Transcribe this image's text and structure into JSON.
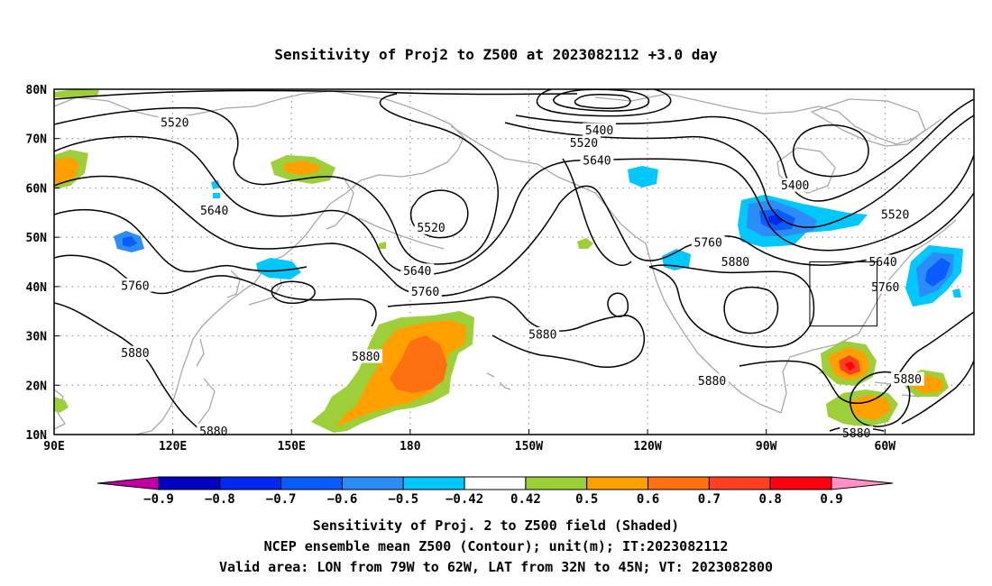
{
  "title": "Sensitivity of Proj2 to Z500 at 2023082112 +3.0 day",
  "map": {
    "lon_ticks": [
      "90E",
      "120E",
      "150E",
      "180",
      "150W",
      "120W",
      "90W",
      "60W"
    ],
    "lat_ticks": [
      "80N",
      "70N",
      "60N",
      "50N",
      "40N",
      "30N",
      "20N",
      "10N"
    ],
    "lon_range": [
      90,
      322.5
    ],
    "lat_range": [
      10,
      80
    ],
    "grid": true,
    "valid_area_box": {
      "lon": [
        281,
        298
      ],
      "lat": [
        32,
        45
      ]
    },
    "contour_color": "#000000",
    "coastline_color": "#a8a8a8"
  },
  "contours": {
    "unit": "m",
    "labels": [
      {
        "text": "5520",
        "lon": 120.5,
        "lat": 73.2
      },
      {
        "text": "5640",
        "lon": 130.5,
        "lat": 55.4
      },
      {
        "text": "5760",
        "lon": 110.5,
        "lat": 40.2
      },
      {
        "text": "5880",
        "lon": 110.5,
        "lat": 26.5
      },
      {
        "text": "5880",
        "lon": 130.3,
        "lat": 10.6
      },
      {
        "text": "5520",
        "lon": 185.3,
        "lat": 51.9
      },
      {
        "text": "5640",
        "lon": 181.8,
        "lat": 43.2
      },
      {
        "text": "5760",
        "lon": 183.8,
        "lat": 39.0
      },
      {
        "text": "5880",
        "lon": 168.8,
        "lat": 25.8
      },
      {
        "text": "5400",
        "lon": 227.8,
        "lat": 71.7
      },
      {
        "text": "5520",
        "lon": 223.9,
        "lat": 69.1
      },
      {
        "text": "5640",
        "lon": 227.2,
        "lat": 65.6
      },
      {
        "text": "5880",
        "lon": 213.5,
        "lat": 30.3
      },
      {
        "text": "5760",
        "lon": 255.3,
        "lat": 48.9
      },
      {
        "text": "5880",
        "lon": 262.2,
        "lat": 45.0
      },
      {
        "text": "5880",
        "lon": 256.3,
        "lat": 20.9
      },
      {
        "text": "5400",
        "lon": 277.3,
        "lat": 60.5
      },
      {
        "text": "5520",
        "lon": 302.6,
        "lat": 54.6
      },
      {
        "text": "5640",
        "lon": 299.5,
        "lat": 45.0
      },
      {
        "text": "5760",
        "lon": 300.1,
        "lat": 39.9
      },
      {
        "text": "5880",
        "lon": 305.7,
        "lat": 21.2
      },
      {
        "text": "5880",
        "lon": 292.8,
        "lat": 10.3
      }
    ]
  },
  "colorbar": {
    "labels": [
      "−0.9",
      "−0.8",
      "−0.7",
      "−0.6",
      "−0.5",
      "−0.42",
      "0.42",
      "0.5",
      "0.6",
      "0.7",
      "0.8",
      "0.9"
    ],
    "colors": [
      "#0000c0",
      "#0028ef",
      "#0a5cff",
      "#2c8cf8",
      "#00c8ff",
      "#ffffff",
      "#9ccf38",
      "#ffa000",
      "#ff7010",
      "#ff4020",
      "#ff0010"
    ],
    "low_end_color": "#c000a0",
    "high_end_color": "#ff90c8"
  },
  "footer": {
    "line1": "Sensitivity of Proj. 2 to Z500 field (Shaded)",
    "line2": "NCEP ensemble mean Z500 (Contour); unit(m); IT:2023082112",
    "line3": "Valid area: LON from 79W to 62W, LAT from 32N to 45N; VT: 2023082800"
  }
}
